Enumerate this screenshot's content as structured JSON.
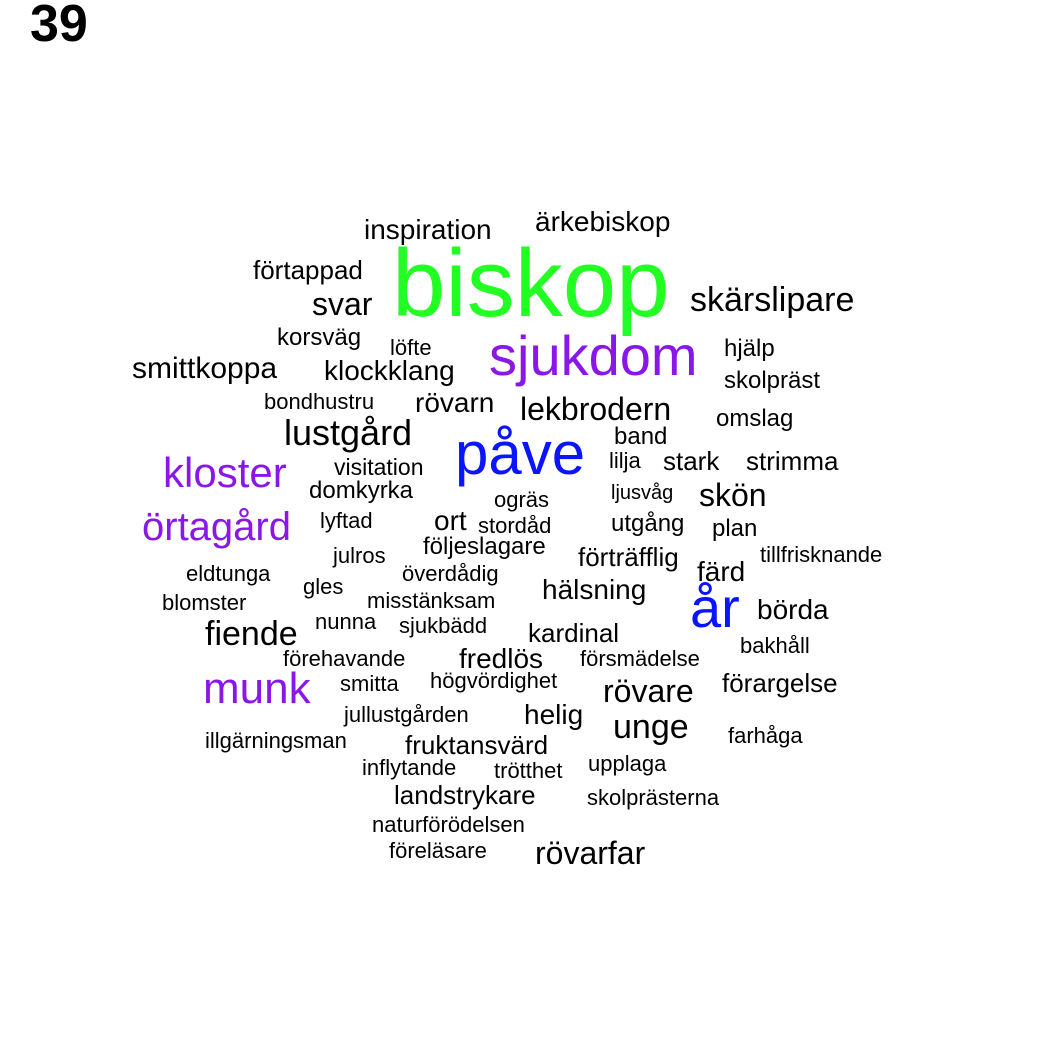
{
  "page_number": "39",
  "colors": {
    "green": "#22ff22",
    "purple": "#8a16e8",
    "blue": "#0a14ff",
    "black": "#000000"
  },
  "words": [
    {
      "text": "biskop",
      "color": "green"
    },
    {
      "text": "sjukdom",
      "color": "purple"
    },
    {
      "text": "påve",
      "color": "blue"
    },
    {
      "text": "år",
      "color": "blue"
    },
    {
      "text": "kloster",
      "color": "purple"
    },
    {
      "text": "örtagård",
      "color": "purple"
    },
    {
      "text": "munk",
      "color": "purple"
    },
    {
      "text": "inspiration",
      "color": "black"
    },
    {
      "text": "ärkebiskop",
      "color": "black"
    },
    {
      "text": "förtappad",
      "color": "black"
    },
    {
      "text": "svar",
      "color": "black"
    },
    {
      "text": "skärslipare",
      "color": "black"
    },
    {
      "text": "korsväg",
      "color": "black"
    },
    {
      "text": "löfte",
      "color": "black"
    },
    {
      "text": "hjälp",
      "color": "black"
    },
    {
      "text": "smittkoppa",
      "color": "black"
    },
    {
      "text": "klockklang",
      "color": "black"
    },
    {
      "text": "skolpräst",
      "color": "black"
    },
    {
      "text": "bondhustru",
      "color": "black"
    },
    {
      "text": "rövarn",
      "color": "black"
    },
    {
      "text": "lekbrodern",
      "color": "black"
    },
    {
      "text": "omslag",
      "color": "black"
    },
    {
      "text": "lustgård",
      "color": "black"
    },
    {
      "text": "band",
      "color": "black"
    },
    {
      "text": "visitation",
      "color": "black"
    },
    {
      "text": "lilja",
      "color": "black"
    },
    {
      "text": "stark",
      "color": "black"
    },
    {
      "text": "strimma",
      "color": "black"
    },
    {
      "text": "domkyrka",
      "color": "black"
    },
    {
      "text": "ogräs",
      "color": "black"
    },
    {
      "text": "ljusvåg",
      "color": "black"
    },
    {
      "text": "skön",
      "color": "black"
    },
    {
      "text": "lyftad",
      "color": "black"
    },
    {
      "text": "ort",
      "color": "black"
    },
    {
      "text": "stordåd",
      "color": "black"
    },
    {
      "text": "utgång",
      "color": "black"
    },
    {
      "text": "plan",
      "color": "black"
    },
    {
      "text": "julros",
      "color": "black"
    },
    {
      "text": "följeslagare",
      "color": "black"
    },
    {
      "text": "förträfflig",
      "color": "black"
    },
    {
      "text": "tillfrisknande",
      "color": "black"
    },
    {
      "text": "eldtunga",
      "color": "black"
    },
    {
      "text": "överdådig",
      "color": "black"
    },
    {
      "text": "färd",
      "color": "black"
    },
    {
      "text": "gles",
      "color": "black"
    },
    {
      "text": "hälsning",
      "color": "black"
    },
    {
      "text": "blomster",
      "color": "black"
    },
    {
      "text": "misstänksam",
      "color": "black"
    },
    {
      "text": "börda",
      "color": "black"
    },
    {
      "text": "nunna",
      "color": "black"
    },
    {
      "text": "fiende",
      "color": "black"
    },
    {
      "text": "sjukbädd",
      "color": "black"
    },
    {
      "text": "kardinal",
      "color": "black"
    },
    {
      "text": "bakhåll",
      "color": "black"
    },
    {
      "text": "förehavande",
      "color": "black"
    },
    {
      "text": "fredlös",
      "color": "black"
    },
    {
      "text": "försmädelse",
      "color": "black"
    },
    {
      "text": "smitta",
      "color": "black"
    },
    {
      "text": "högvördighet",
      "color": "black"
    },
    {
      "text": "rövare",
      "color": "black"
    },
    {
      "text": "förargelse",
      "color": "black"
    },
    {
      "text": "jullustgården",
      "color": "black"
    },
    {
      "text": "helig",
      "color": "black"
    },
    {
      "text": "unge",
      "color": "black"
    },
    {
      "text": "illgärningsman",
      "color": "black"
    },
    {
      "text": "fruktansvärd",
      "color": "black"
    },
    {
      "text": "farhåga",
      "color": "black"
    },
    {
      "text": "inflytande",
      "color": "black"
    },
    {
      "text": "trötthet",
      "color": "black"
    },
    {
      "text": "upplaga",
      "color": "black"
    },
    {
      "text": "landstrykare",
      "color": "black"
    },
    {
      "text": "skolprästerna",
      "color": "black"
    },
    {
      "text": "naturförödelsen",
      "color": "black"
    },
    {
      "text": "föreläsare",
      "color": "black"
    },
    {
      "text": "rövarfar",
      "color": "black"
    }
  ]
}
